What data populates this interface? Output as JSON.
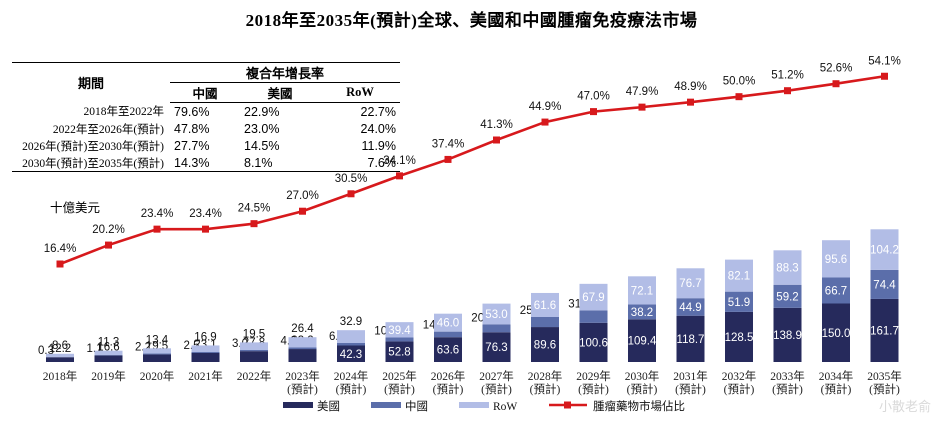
{
  "chart_data": {
    "type": "bar",
    "title": "2018年至2035年(預計)全球、美國和中國腫瘤免疫療法市場",
    "ylabel": "十億美元",
    "categories": [
      "2018年",
      "2019年",
      "2020年",
      "2021年",
      "2022年",
      "2023年",
      "2024年",
      "2025年",
      "2026年",
      "2027年",
      "2028年",
      "2029年",
      "2030年",
      "2031年",
      "2032年",
      "2033年",
      "2034年",
      "2035年"
    ],
    "category_notes": [
      "",
      "",
      "",
      "",
      "",
      "(預計)",
      "(預計)",
      "(預計)",
      "(預計)",
      "(預計)",
      "(預計)",
      "(預計)",
      "(預計)",
      "(預計)",
      "(預計)",
      "(預計)",
      "(預計)",
      "(預計)"
    ],
    "stacked": true,
    "series": [
      {
        "name": "美國",
        "color": "#262a5c",
        "values": [
          12.2,
          16.6,
          19.5,
          23.1,
          27.8,
          33.2,
          42.3,
          52.8,
          63.6,
          76.3,
          89.6,
          100.6,
          109.4,
          118.7,
          128.5,
          138.9,
          150.0,
          161.7
        ]
      },
      {
        "name": "中國",
        "color": "#5b6eaa",
        "values": [
          0.3,
          1.1,
          2.2,
          2.5,
          3.0,
          4.0,
          6.4,
          10.0,
          14.3,
          20.4,
          25.8,
          31.9,
          38.2,
          44.9,
          51.9,
          59.2,
          66.7,
          74.4
        ]
      },
      {
        "name": "RoW",
        "color": "#b2bde6",
        "values": [
          8.6,
          11.3,
          13.4,
          16.9,
          19.5,
          26.4,
          32.9,
          39.4,
          46.0,
          53.0,
          61.6,
          67.9,
          72.1,
          76.7,
          82.1,
          88.3,
          95.6,
          104.2
        ]
      }
    ],
    "line_series": {
      "name": "腫瘤藥物市場佔比",
      "color": "#d7191c",
      "values": [
        16.4,
        20.2,
        23.4,
        23.4,
        24.5,
        27.0,
        30.5,
        34.1,
        37.4,
        41.3,
        44.9,
        47.0,
        47.9,
        48.9,
        50.0,
        51.2,
        52.6,
        54.1
      ],
      "unit": "%"
    },
    "cagr_table": {
      "title": "複合年增長率",
      "period_header": "期間",
      "columns": [
        "中國",
        "美國",
        "RoW"
      ],
      "rows": [
        {
          "period": "2018年至2022年",
          "values": [
            "79.6%",
            "22.9%",
            "22.7%"
          ]
        },
        {
          "period": "2022年至2026年(預計)",
          "values": [
            "47.8%",
            "23.0%",
            "24.0%"
          ]
        },
        {
          "period": "2026年(預計)至2030年(預計)",
          "values": [
            "27.7%",
            "14.5%",
            "11.9%"
          ]
        },
        {
          "period": "2030年(預計)至2035年(預計)",
          "values": [
            "14.3%",
            "8.1%",
            "7.6%"
          ]
        }
      ]
    }
  },
  "watermark": "小散老俞"
}
